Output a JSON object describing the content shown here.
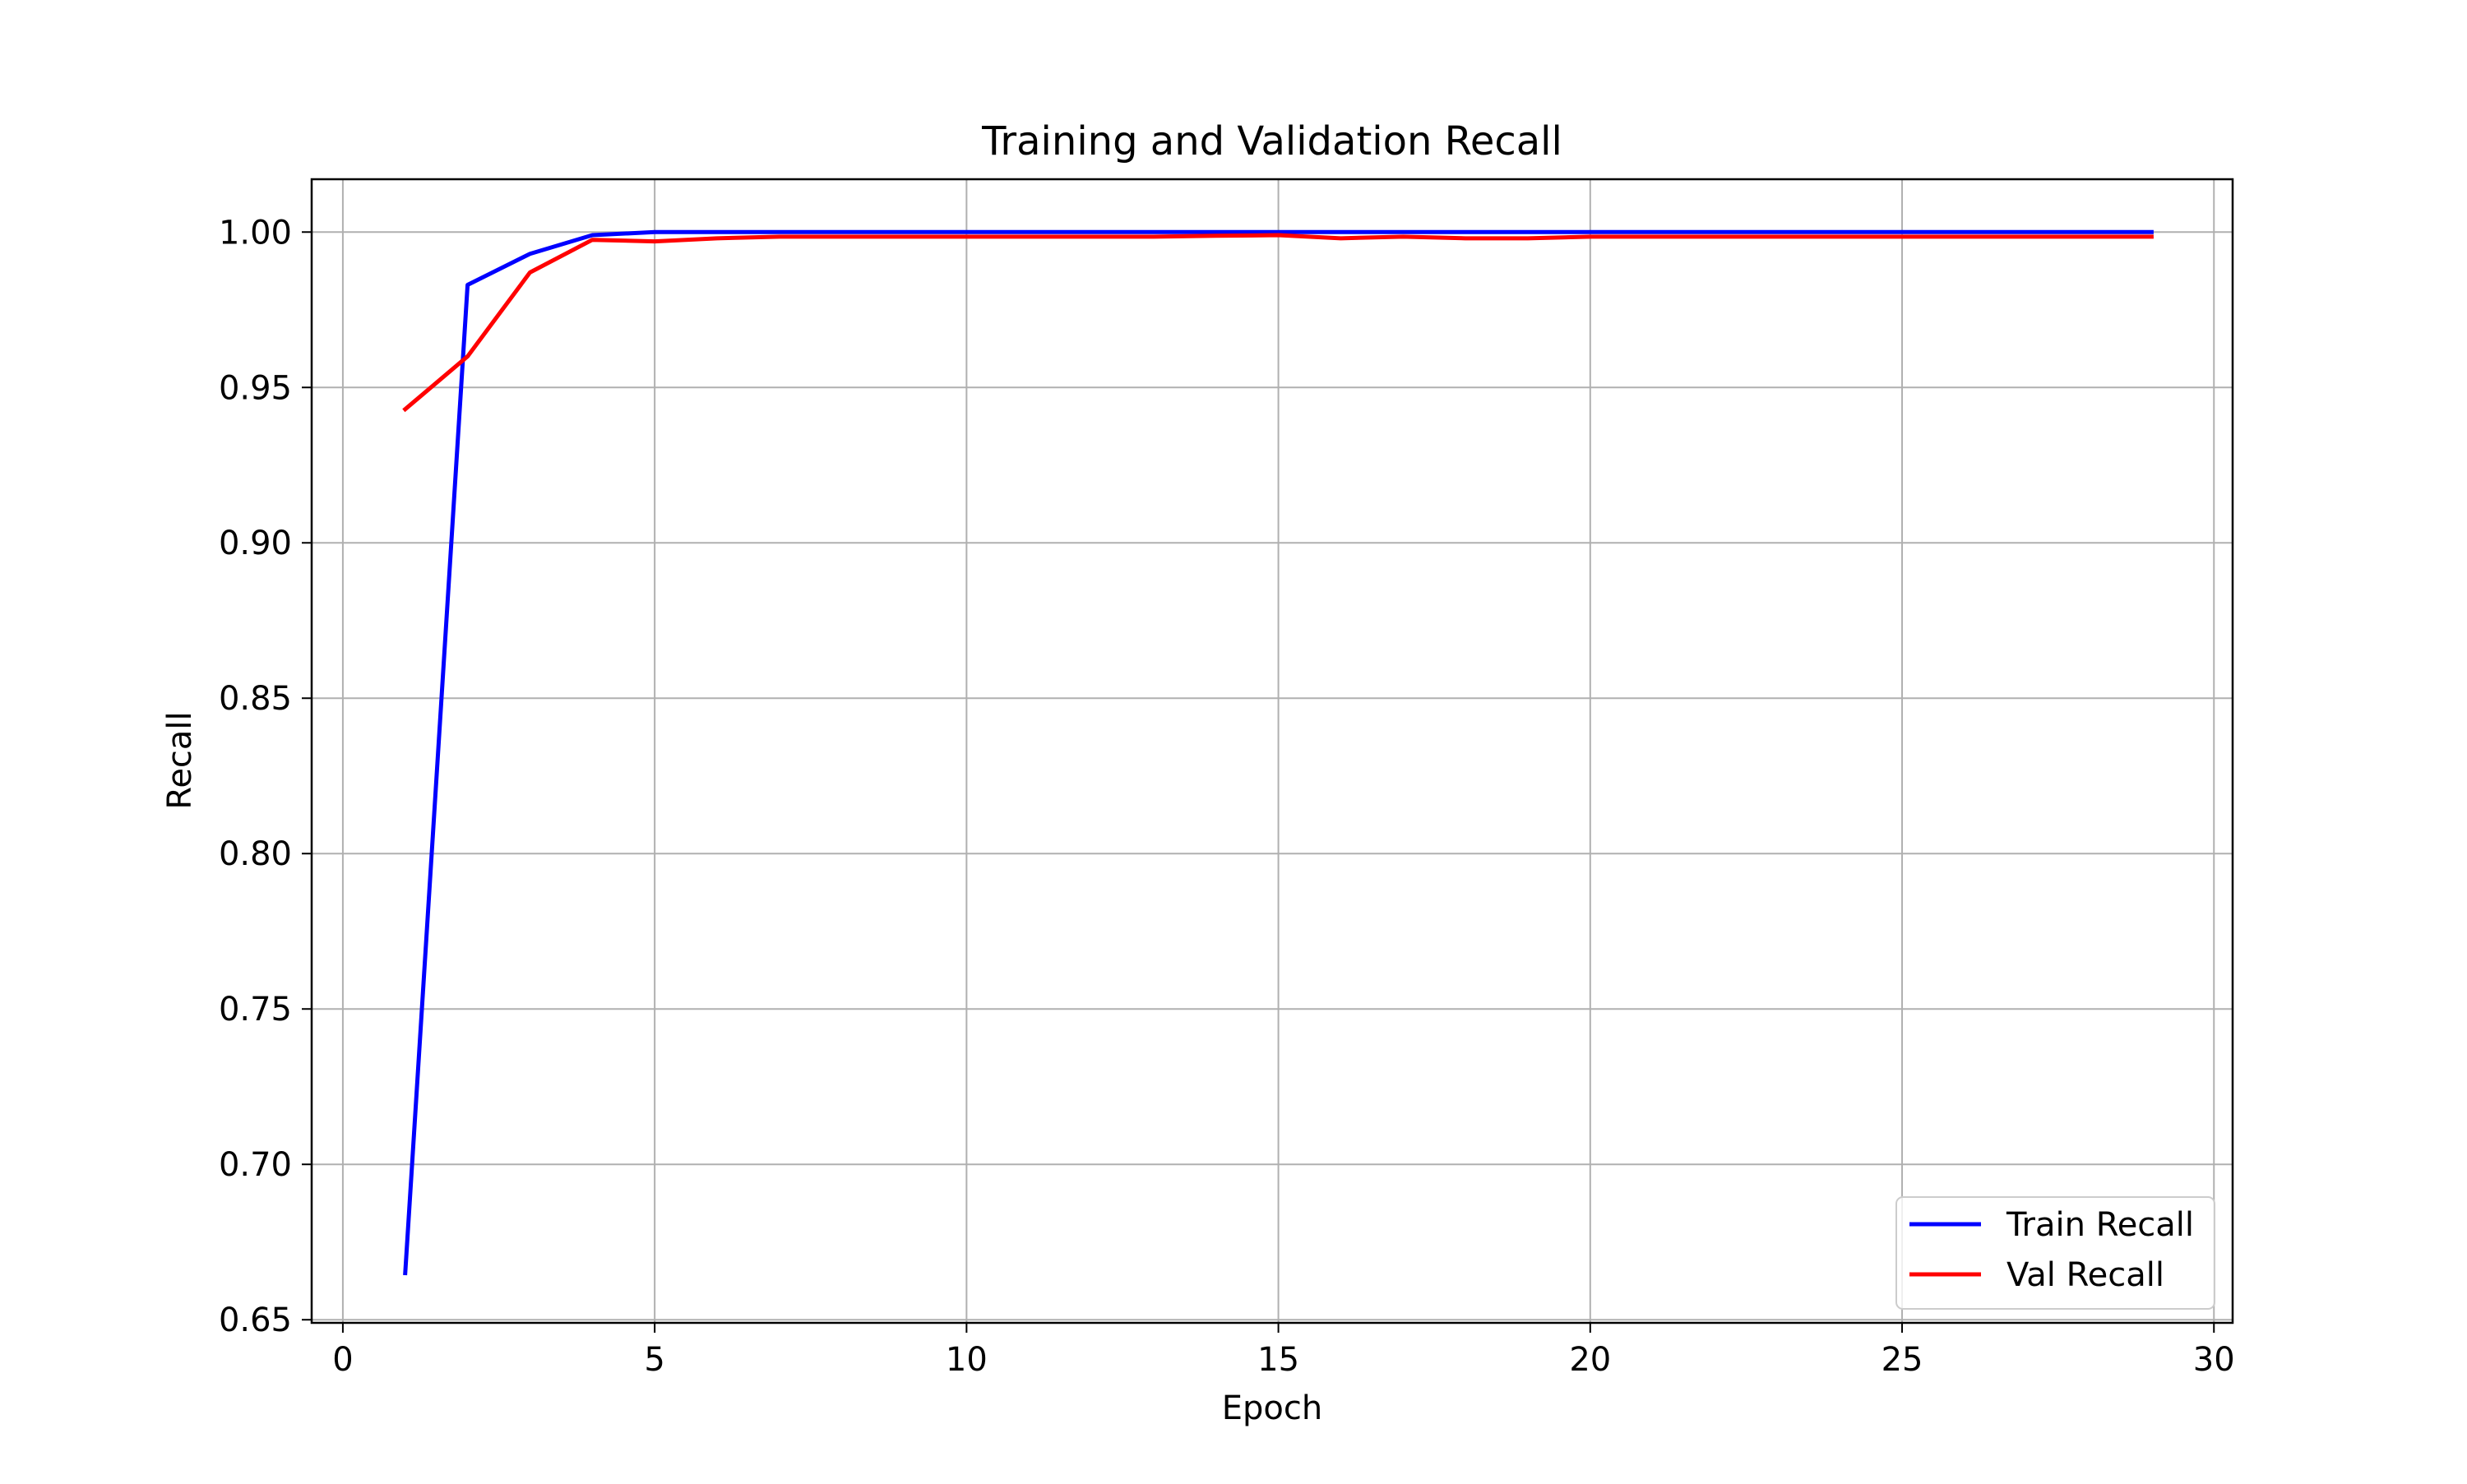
{
  "chart_data": {
    "type": "line",
    "title": "Training and Validation Recall",
    "xlabel": "Epoch",
    "ylabel": "Recall",
    "xlim": [
      -0.5,
      30.3
    ],
    "ylim": [
      0.649,
      1.017
    ],
    "xticks": [
      0,
      5,
      10,
      15,
      20,
      25,
      30
    ],
    "xtick_labels": [
      "0",
      "5",
      "10",
      "15",
      "20",
      "25",
      "30"
    ],
    "yticks": [
      0.65,
      0.7,
      0.75,
      0.8,
      0.85,
      0.9,
      0.95,
      1.0
    ],
    "ytick_labels": [
      "0.65",
      "0.70",
      "0.75",
      "0.80",
      "0.85",
      "0.90",
      "0.95",
      "1.00"
    ],
    "grid": true,
    "legend_position": "lower-right",
    "x": [
      1,
      2,
      3,
      4,
      5,
      6,
      7,
      8,
      9,
      10,
      11,
      12,
      13,
      14,
      15,
      16,
      17,
      18,
      19,
      20,
      21,
      22,
      23,
      24,
      25,
      26,
      27,
      28,
      29
    ],
    "series": [
      {
        "name": "Train Recall",
        "color": "#0000ff",
        "values": [
          0.665,
          0.983,
          0.993,
          0.999,
          1.0,
          1.0,
          1.0,
          1.0,
          1.0,
          1.0,
          1.0,
          1.0,
          1.0,
          1.0,
          1.0,
          1.0,
          1.0,
          1.0,
          1.0,
          1.0,
          1.0,
          1.0,
          1.0,
          1.0,
          1.0,
          1.0,
          1.0,
          1.0,
          1.0
        ]
      },
      {
        "name": "Val Recall",
        "color": "#ff0000",
        "values": [
          0.943,
          0.96,
          0.987,
          0.9975,
          0.997,
          0.998,
          0.9985,
          0.9985,
          0.9985,
          0.9985,
          0.9985,
          0.9985,
          0.9985,
          0.9988,
          0.999,
          0.998,
          0.9985,
          0.998,
          0.998,
          0.9985,
          0.9985,
          0.9985,
          0.9985,
          0.9985,
          0.9985,
          0.9985,
          0.9985,
          0.9985,
          0.9985
        ]
      }
    ]
  }
}
